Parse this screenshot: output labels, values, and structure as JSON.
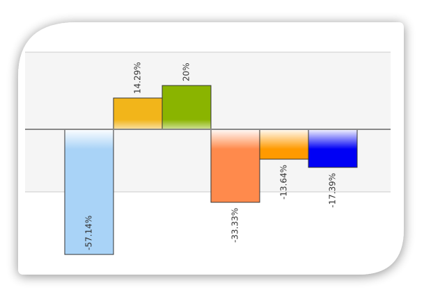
{
  "chart_data": {
    "type": "bar",
    "categories": [
      null,
      null,
      null,
      null,
      null,
      null
    ],
    "values": [
      -57.14,
      14.29,
      20,
      -33.33,
      -13.64,
      -17.39
    ],
    "value_labels": [
      "-57.14%",
      "14.29%",
      "20%",
      "-33.33%",
      "-13.64%",
      "-17.39%"
    ],
    "colors": [
      "#a9d3f7",
      "#f2b51a",
      "#8ab400",
      "#ff8a4c",
      "#ff9a00",
      "#0000f5"
    ],
    "ylim": [
      -60,
      40
    ]
  }
}
